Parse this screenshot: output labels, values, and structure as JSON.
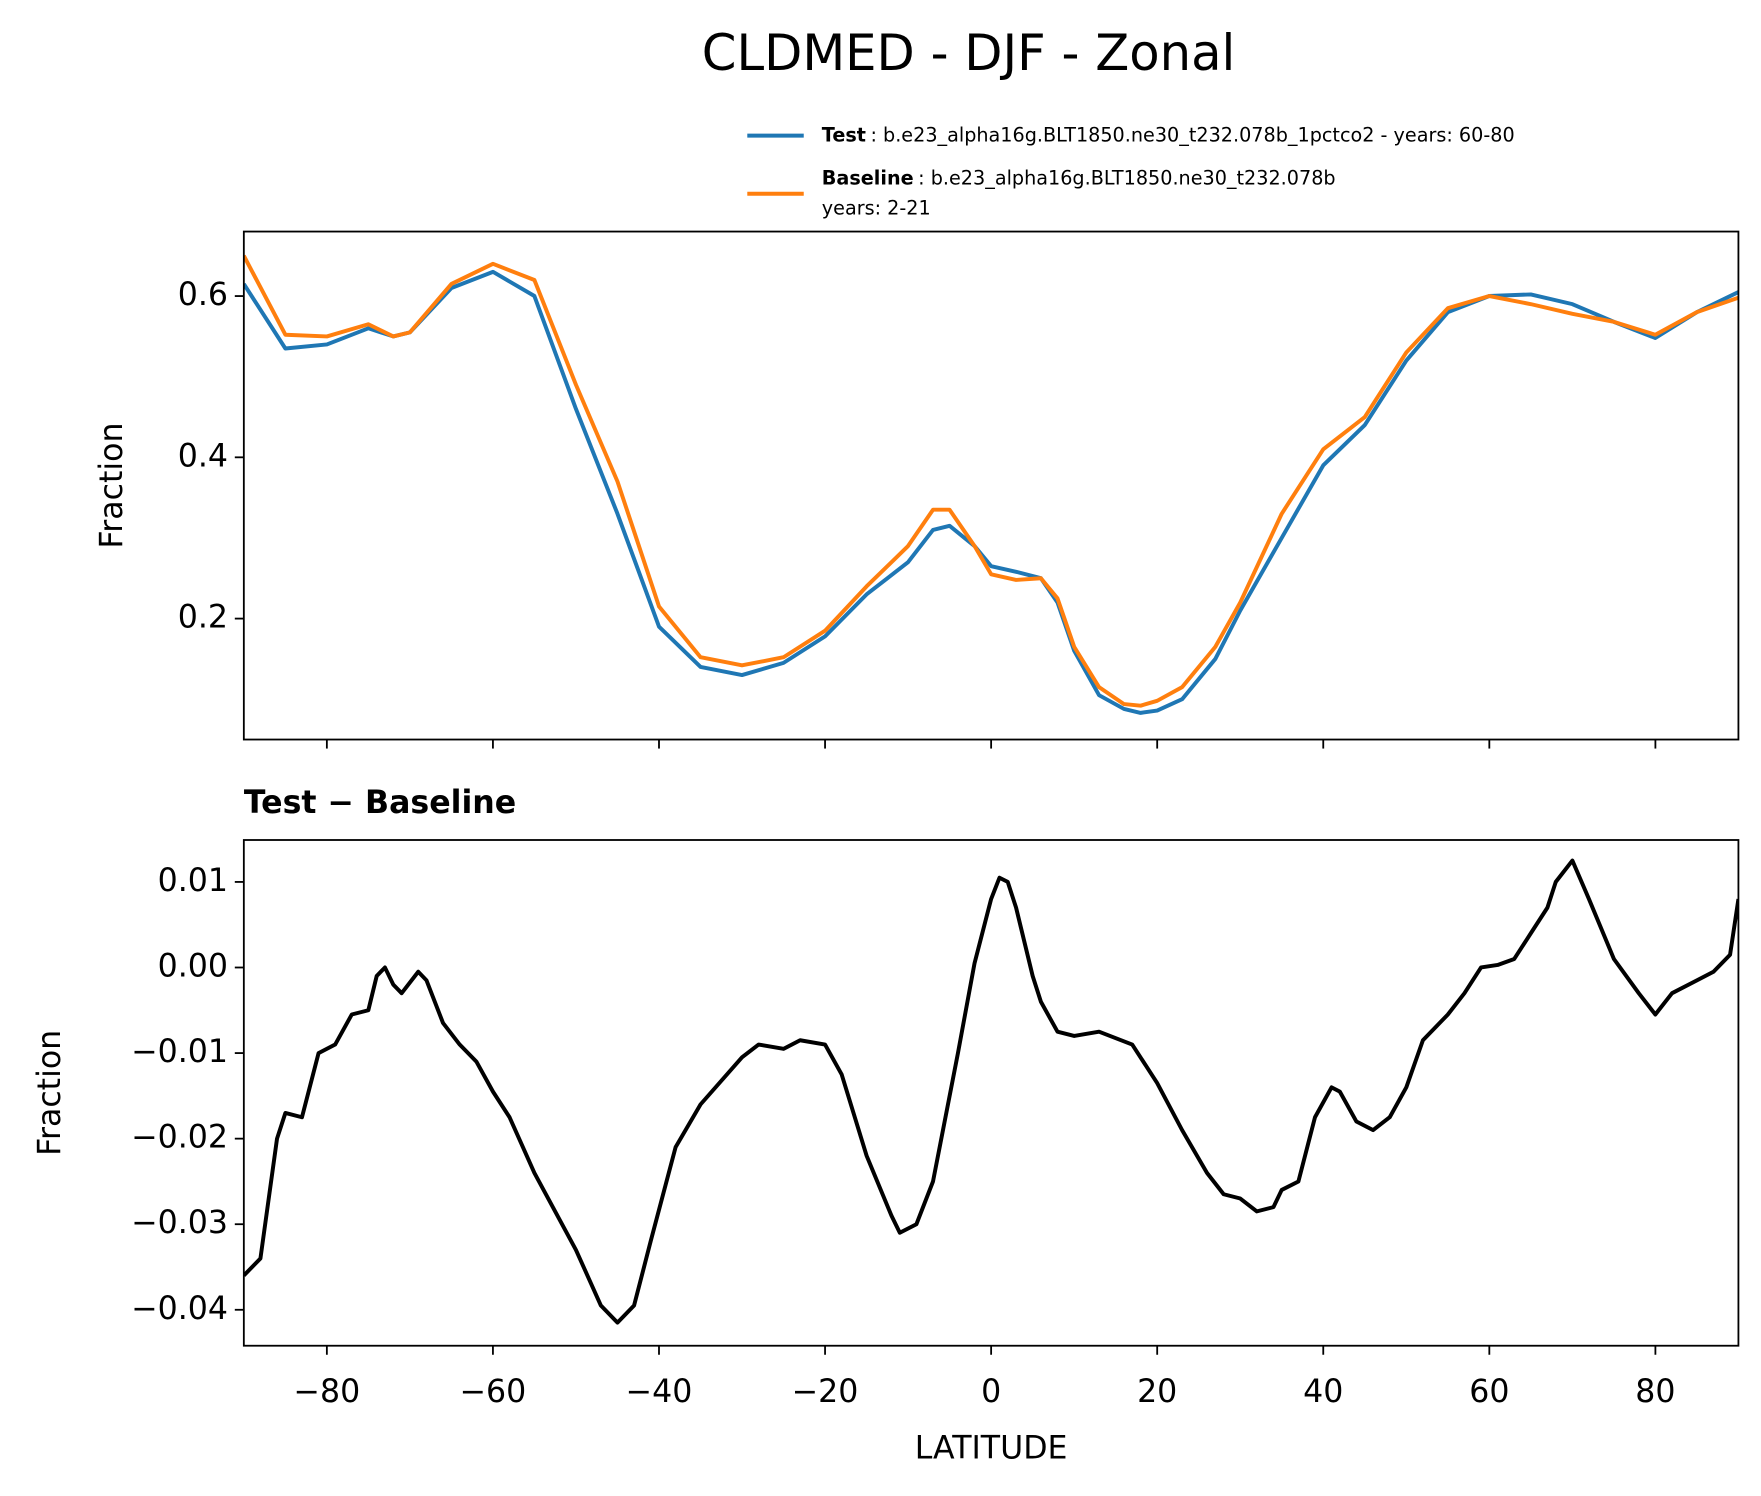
{
  "title": "CLDMED - DJF - Zonal",
  "chart_data": [
    {
      "type": "line",
      "ylabel": "Fraction",
      "x": [
        -90,
        -85,
        -80,
        -75,
        -72,
        -70,
        -65,
        -60,
        -55,
        -50,
        -45,
        -40,
        -35,
        -30,
        -25,
        -20,
        -15,
        -10,
        -7,
        -5,
        -2,
        0,
        3,
        6,
        8,
        10,
        13,
        16,
        18,
        20,
        23,
        27,
        30,
        35,
        40,
        45,
        50,
        55,
        60,
        65,
        70,
        75,
        80,
        85,
        90
      ],
      "series": [
        {
          "name": "Test",
          "description": [
            ": b.e23_alpha16g.BLT1850.ne30_t232.078b_1pctco2 - years: 60-80"
          ],
          "color": "#1f77b4",
          "values": [
            0.615,
            0.535,
            0.54,
            0.56,
            0.55,
            0.555,
            0.61,
            0.63,
            0.6,
            0.46,
            0.33,
            0.19,
            0.14,
            0.13,
            0.145,
            0.178,
            0.23,
            0.27,
            0.31,
            0.315,
            0.29,
            0.265,
            0.258,
            0.25,
            0.22,
            0.16,
            0.105,
            0.088,
            0.083,
            0.086,
            0.1,
            0.15,
            0.21,
            0.3,
            0.39,
            0.44,
            0.52,
            0.58,
            0.6,
            0.602,
            0.59,
            0.568,
            0.548,
            0.58,
            0.605
          ]
        },
        {
          "name": "Baseline",
          "description": [
            ": b.e23_alpha16g.BLT1850.ne30_t232.078b",
            "years: 2-21"
          ],
          "color": "#ff7f0e",
          "values": [
            0.65,
            0.552,
            0.55,
            0.565,
            0.55,
            0.555,
            0.615,
            0.64,
            0.62,
            0.49,
            0.37,
            0.215,
            0.152,
            0.142,
            0.152,
            0.185,
            0.24,
            0.29,
            0.335,
            0.335,
            0.29,
            0.255,
            0.248,
            0.25,
            0.225,
            0.165,
            0.115,
            0.094,
            0.092,
            0.098,
            0.115,
            0.165,
            0.22,
            0.33,
            0.41,
            0.45,
            0.53,
            0.585,
            0.6,
            0.59,
            0.578,
            0.568,
            0.552,
            0.58,
            0.598
          ]
        }
      ],
      "xlim": [
        -90,
        90
      ],
      "xticks": [
        -80,
        -60,
        -40,
        -20,
        0,
        20,
        40,
        60,
        80
      ],
      "ylim": [
        0.05,
        0.68
      ],
      "yticks": [
        0.2,
        0.4,
        0.6
      ]
    },
    {
      "type": "line",
      "subtitle": "Test − Baseline",
      "ylabel": "Fraction",
      "xlabel": "LATITUDE",
      "color": "#000000",
      "x": [
        -90,
        -88,
        -86,
        -85,
        -83,
        -81,
        -79,
        -77,
        -75,
        -74,
        -73,
        -72,
        -71,
        -69,
        -68,
        -66,
        -64,
        -62,
        -60,
        -58,
        -55,
        -50,
        -47,
        -45,
        -43,
        -41,
        -38,
        -35,
        -30,
        -28,
        -25,
        -23,
        -20,
        -18,
        -15,
        -12,
        -11,
        -9,
        -7,
        -4,
        -2,
        0,
        1,
        2,
        3,
        5,
        6,
        8,
        10,
        13,
        17,
        20,
        23,
        26,
        28,
        30,
        32,
        34,
        35,
        37,
        39,
        41,
        42,
        44,
        46,
        48,
        50,
        52,
        55,
        57,
        59,
        61,
        63,
        65,
        67,
        68,
        70,
        72,
        75,
        78,
        80,
        82,
        85,
        87,
        89,
        90
      ],
      "values": [
        -0.036,
        -0.034,
        -0.02,
        -0.017,
        -0.0175,
        -0.01,
        -0.009,
        -0.0055,
        -0.005,
        -0.001,
        0.0,
        -0.002,
        -0.003,
        -0.0005,
        -0.0015,
        -0.0065,
        -0.009,
        -0.011,
        -0.0145,
        -0.0175,
        -0.024,
        -0.033,
        -0.0395,
        -0.0415,
        -0.0395,
        -0.032,
        -0.021,
        -0.016,
        -0.0105,
        -0.009,
        -0.0095,
        -0.0085,
        -0.009,
        -0.0125,
        -0.022,
        -0.029,
        -0.031,
        -0.03,
        -0.025,
        -0.01,
        0.0005,
        0.008,
        0.0105,
        0.01,
        0.007,
        -0.001,
        -0.004,
        -0.0075,
        -0.008,
        -0.0075,
        -0.009,
        -0.0135,
        -0.019,
        -0.024,
        -0.0265,
        -0.027,
        -0.0285,
        -0.028,
        -0.026,
        -0.025,
        -0.0175,
        -0.014,
        -0.0145,
        -0.018,
        -0.019,
        -0.0175,
        -0.014,
        -0.0085,
        -0.0055,
        -0.003,
        0.0,
        0.0003,
        0.001,
        0.004,
        0.007,
        0.01,
        0.0125,
        0.008,
        0.001,
        -0.003,
        -0.0055,
        -0.003,
        -0.0015,
        -0.0005,
        0.0015,
        0.008
      ],
      "xlim": [
        -90,
        90
      ],
      "xticks": [
        {
          "value": -80,
          "label": "−80"
        },
        {
          "value": -60,
          "label": "−60"
        },
        {
          "value": -40,
          "label": "−40"
        },
        {
          "value": -20,
          "label": "−20"
        },
        0,
        20,
        40,
        60,
        80
      ],
      "ylim": [
        -0.0442,
        0.0149
      ],
      "yticks": [
        {
          "value": -0.04,
          "label": "−0.04"
        },
        {
          "value": -0.03,
          "label": "−0.03"
        },
        {
          "value": -0.02,
          "label": "−0.02"
        },
        {
          "value": -0.01,
          "label": "−0.01"
        },
        {
          "value": 0,
          "label": "0.00"
        },
        0.01
      ]
    }
  ]
}
